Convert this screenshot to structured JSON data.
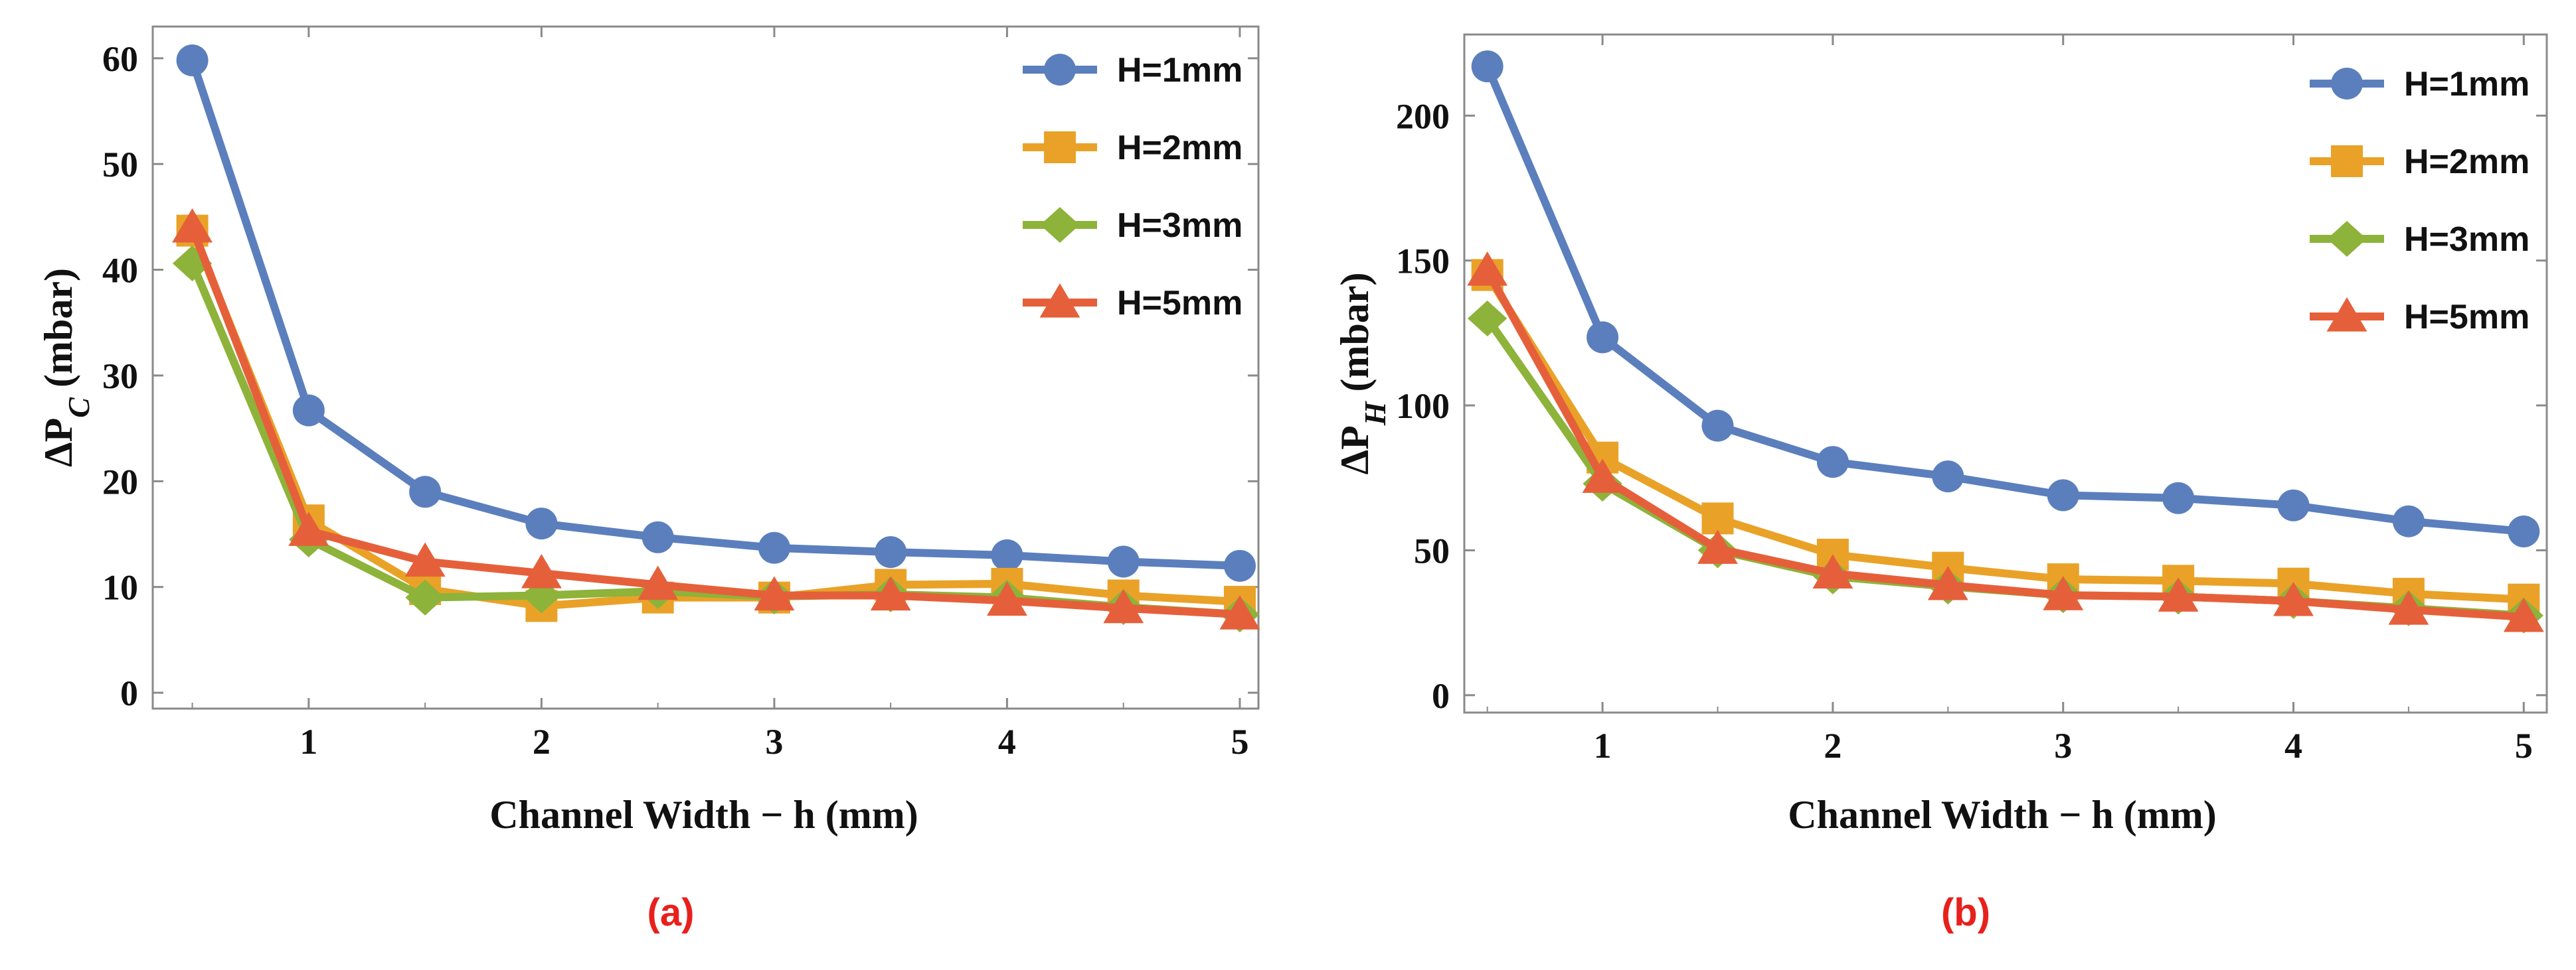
{
  "chart_data": [
    {
      "type": "line",
      "panel_label": "(a)",
      "xlabel": "Channel Width − h (mm)",
      "ylabel_main": "ΔP",
      "ylabel_sub": "C",
      "ylabel_unit": " (mbar)",
      "x": [
        0.5,
        1,
        1.5,
        2,
        2.5,
        3,
        3.5,
        4,
        4.5,
        5
      ],
      "xlim": [
        0.33,
        5.08
      ],
      "ylim": [
        -1.5,
        63
      ],
      "xticks": [
        1,
        2,
        3,
        4,
        5
      ],
      "yticks": [
        0,
        10,
        20,
        30,
        40,
        50,
        60
      ],
      "grid": false,
      "legend_position": "top-right",
      "series": [
        {
          "name": "H=1mm",
          "marker": "circle",
          "color": "#5b7fbd",
          "values": [
            59.8,
            26.7,
            19.0,
            16.0,
            14.7,
            13.7,
            13.3,
            13.0,
            12.4,
            12.0
          ]
        },
        {
          "name": "H=2mm",
          "marker": "square",
          "color": "#e9a227",
          "values": [
            43.7,
            16.3,
            9.8,
            8.2,
            9.0,
            9.0,
            10.2,
            10.3,
            9.2,
            8.6
          ]
        },
        {
          "name": "H=3mm",
          "marker": "diamond",
          "color": "#8db33a",
          "values": [
            40.6,
            14.5,
            9.0,
            9.2,
            9.6,
            9.1,
            9.3,
            9.0,
            8.1,
            7.4
          ]
        },
        {
          "name": "H=5mm",
          "marker": "triangle",
          "color": "#e5603a",
          "values": [
            44.0,
            15.3,
            12.4,
            11.3,
            10.2,
            9.2,
            9.2,
            8.7,
            8.0,
            7.4
          ]
        }
      ]
    },
    {
      "type": "line",
      "panel_label": "(b)",
      "xlabel": "Channel Width − h (mm)",
      "ylabel_main": "ΔP",
      "ylabel_sub": "H",
      "ylabel_unit": " (mbar)",
      "x": [
        0.5,
        1,
        1.5,
        2,
        2.5,
        3,
        3.5,
        4,
        4.5,
        5
      ],
      "xlim": [
        0.4,
        5.1
      ],
      "ylim": [
        -6,
        228
      ],
      "xticks": [
        1,
        2,
        3,
        4,
        5
      ],
      "yticks": [
        0,
        50,
        100,
        150,
        200
      ],
      "grid": false,
      "legend_position": "top-right",
      "series": [
        {
          "name": "H=1mm",
          "marker": "circle",
          "color": "#5b7fbd",
          "values": [
            217,
            123.5,
            93,
            80.5,
            75.5,
            69,
            68,
            65.5,
            60,
            56.5
          ]
        },
        {
          "name": "H=2mm",
          "marker": "square",
          "color": "#e9a227",
          "values": [
            145,
            82,
            61,
            48.5,
            44,
            40,
            39.5,
            38.5,
            35,
            33
          ]
        },
        {
          "name": "H=3mm",
          "marker": "diamond",
          "color": "#8db33a",
          "values": [
            130,
            73,
            50,
            41,
            37.5,
            34.5,
            34,
            32.5,
            30,
            27.5
          ]
        },
        {
          "name": "H=5mm",
          "marker": "triangle",
          "color": "#e5603a",
          "values": [
            146.5,
            75,
            50.5,
            42,
            38,
            34.5,
            34,
            32.5,
            29.5,
            27
          ]
        }
      ]
    }
  ]
}
